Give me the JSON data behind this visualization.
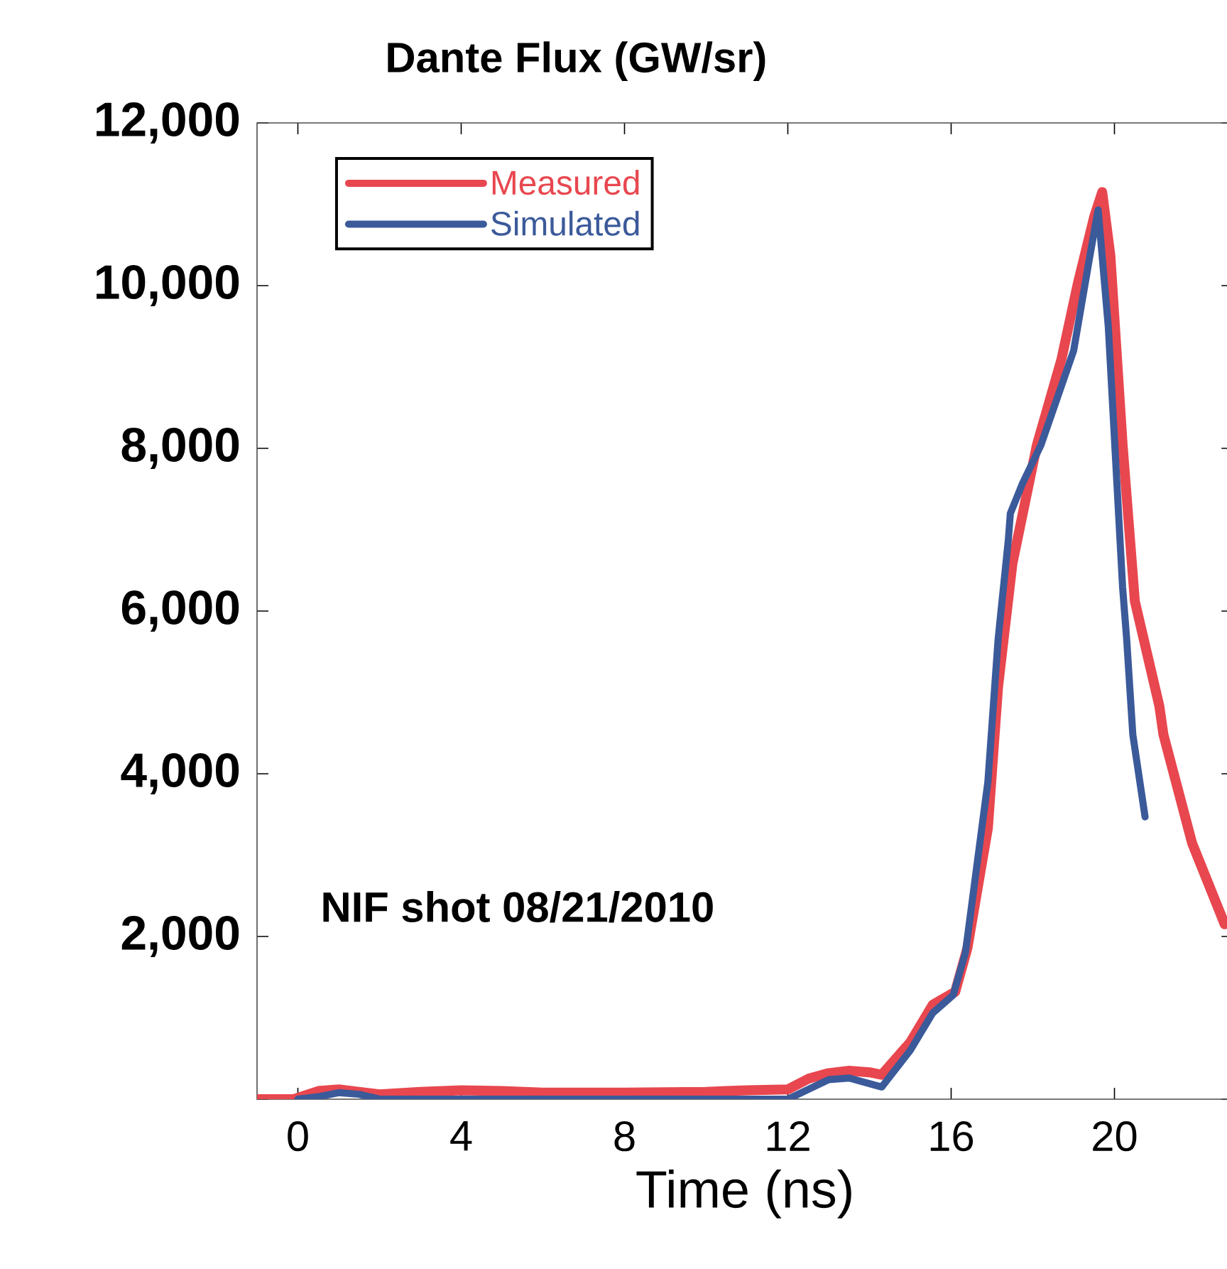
{
  "chart_data": {
    "type": "line",
    "title": "Dante Flux (GW/sr)",
    "xlabel": "Time (ns)",
    "annotations": [
      "NIF shot 08/21/2010"
    ],
    "xlim": [
      -1,
      22.9
    ],
    "xticks": [
      0,
      4,
      8,
      12,
      16,
      20
    ],
    "ylim": [
      0,
      12000
    ],
    "yticks": [
      {
        "value": 0,
        "label": null
      },
      {
        "value": 2000,
        "label": "2,000"
      },
      {
        "value": 4000,
        "label": "4,000"
      },
      {
        "value": 6000,
        "label": "6,000"
      },
      {
        "value": 8000,
        "label": "8,000"
      },
      {
        "value": 10000,
        "label": "10,000"
      },
      {
        "value": 12000,
        "label": "12,000"
      }
    ],
    "legend": "top left",
    "grid": false,
    "marker": "none",
    "line_style": "solid",
    "series": [
      {
        "name": "Measured",
        "color": "#e8474f",
        "x": [
          -1,
          -0.1,
          0.5,
          1,
          2,
          3,
          4,
          5,
          6,
          8,
          10,
          11,
          12,
          12.5,
          13,
          13.5,
          14,
          14.3,
          15,
          15.55,
          16.1,
          16.4,
          16.9,
          17.15,
          17.5,
          18.1,
          18.7,
          19.1,
          19.5,
          19.7,
          19.9,
          20.2,
          20.5,
          21.1,
          21.2,
          21.9,
          22.7
        ],
        "values": [
          0,
          0,
          100,
          120,
          60,
          90,
          110,
          100,
          80,
          80,
          90,
          110,
          120,
          250,
          320,
          350,
          330,
          300,
          700,
          1160,
          1320,
          1860,
          3330,
          5070,
          6580,
          8040,
          9090,
          10020,
          10840,
          11150,
          10370,
          8040,
          6120,
          4830,
          4480,
          3150,
          2150
        ]
      },
      {
        "name": "Simulated",
        "color": "#3b5a9a",
        "x": [
          0,
          0.5,
          1,
          1.5,
          2,
          4,
          6,
          8,
          10,
          12,
          13,
          13.5,
          14.3,
          15,
          15.55,
          16.05,
          16.35,
          16.9,
          17.15,
          17.4,
          17.45,
          17.75,
          18.2,
          19,
          19.4,
          19.6,
          19.85,
          20.2,
          20.3,
          20.45,
          20.75
        ],
        "values": [
          0,
          30,
          80,
          60,
          0,
          0,
          0,
          0,
          0,
          0,
          240,
          260,
          150,
          600,
          1060,
          1280,
          1800,
          3900,
          5650,
          6870,
          7200,
          7570,
          8040,
          9200,
          10370,
          10930,
          9490,
          6290,
          5650,
          4480,
          3470
        ]
      }
    ]
  }
}
